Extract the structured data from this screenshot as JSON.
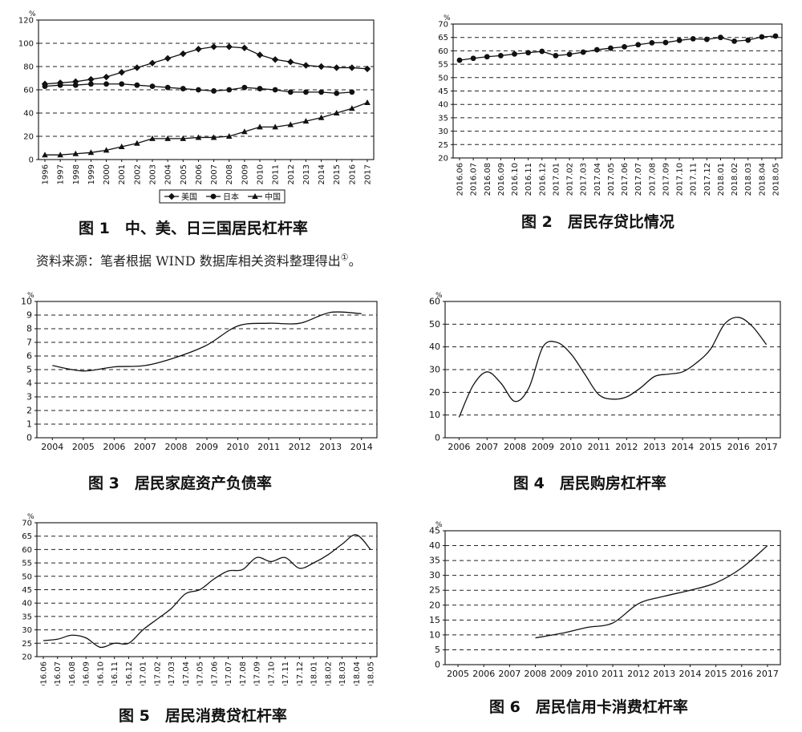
{
  "source_note": {
    "text": "资料来源：笔者根据 WIND 数据库相关资料整理得出",
    "mark": "①",
    "tail": "。"
  },
  "chart_data": [
    {
      "id": "fig1",
      "type": "line",
      "caption": "图 1　中、美、日三国居民杠杆率",
      "unit": "%",
      "ylim": [
        0,
        120
      ],
      "yticks": [
        0,
        20,
        40,
        60,
        80,
        100,
        120
      ],
      "x": [
        "1996",
        "1997",
        "1998",
        "1999",
        "2000",
        "2001",
        "2002",
        "2003",
        "2004",
        "2005",
        "2006",
        "2007",
        "2008",
        "2009",
        "2010",
        "2011",
        "2012",
        "2013",
        "2014",
        "2015",
        "2016",
        "2017"
      ],
      "x_label_rotate": true,
      "gridlines": [
        20,
        40,
        60,
        80,
        100
      ],
      "grid_dash": true,
      "markers": true,
      "legend": {
        "position": "bottom",
        "boxed": true
      },
      "series": [
        {
          "name": "美国",
          "marker": "diamond",
          "values": [
            65,
            66,
            67,
            69,
            71,
            75,
            79,
            83,
            87,
            91,
            95,
            97,
            97,
            96,
            90,
            86,
            84,
            81,
            80,
            79,
            79,
            78
          ]
        },
        {
          "name": "日本",
          "marker": "circle",
          "values": [
            63,
            64,
            64,
            65,
            65,
            65,
            64,
            63,
            62,
            61,
            60,
            59,
            60,
            62,
            61,
            60,
            58,
            58,
            58,
            57,
            58,
            null
          ]
        },
        {
          "name": "中国",
          "marker": "triangle",
          "values": [
            4,
            4,
            5,
            6,
            8,
            11,
            14,
            18,
            18,
            18,
            19,
            19,
            20,
            24,
            28,
            28,
            30,
            33,
            36,
            40,
            44,
            49
          ]
        }
      ]
    },
    {
      "id": "fig2",
      "type": "line",
      "caption": "图 2　居民存贷比情况",
      "unit": "%",
      "ylim": [
        20,
        70
      ],
      "yticks": [
        20,
        25,
        30,
        35,
        40,
        45,
        50,
        55,
        60,
        65,
        70
      ],
      "x": [
        "2016.06",
        "2016.07",
        "2016.08",
        "2016.09",
        "2016.10",
        "2016.11",
        "2016.12",
        "2017.01",
        "2017.02",
        "2017.03",
        "2017.04",
        "2017.05",
        "2017.06",
        "2017.07",
        "2017.08",
        "2017.09",
        "2017.10",
        "2017.11",
        "2017.12",
        "2018.01",
        "2018.02",
        "2018.03",
        "2018.04",
        "2018.05"
      ],
      "x_label_rotate": true,
      "gridlines": [
        25,
        30,
        35,
        40,
        45,
        50,
        55,
        60,
        65
      ],
      "grid_dash": true,
      "markers": true,
      "series": [
        {
          "marker": "circle",
          "values": [
            56.5,
            57.2,
            57.8,
            58.2,
            58.8,
            59.3,
            59.8,
            58.2,
            58.7,
            59.5,
            60.4,
            61.0,
            61.5,
            62.3,
            63.0,
            63.1,
            63.9,
            64.5,
            64.3,
            65.0,
            63.6,
            64.0,
            65.2,
            65.5
          ]
        }
      ]
    },
    {
      "id": "fig3",
      "type": "line",
      "caption": "图 3　居民家庭资产负债率",
      "unit": "%",
      "ylim": [
        0,
        10
      ],
      "yticks": [
        0,
        1,
        2,
        3,
        4,
        5,
        6,
        7,
        8,
        9,
        10
      ],
      "x": [
        "2004",
        "2005",
        "2006",
        "2007",
        "2008",
        "2009",
        "2010",
        "2011",
        "2012",
        "2013",
        "2014"
      ],
      "x_label_rotate": false,
      "gridlines": [
        1,
        2,
        3,
        4,
        5,
        6,
        7,
        8,
        9
      ],
      "grid_dash": true,
      "markers": false,
      "series": [
        {
          "values": [
            5.3,
            4.9,
            5.2,
            5.3,
            5.9,
            6.8,
            8.2,
            8.4,
            8.4,
            9.2,
            9.1
          ]
        }
      ]
    },
    {
      "id": "fig4",
      "type": "line",
      "caption": "图 4　居民购房杠杆率",
      "unit": "%",
      "ylim": [
        0,
        60
      ],
      "yticks": [
        0,
        10,
        20,
        30,
        40,
        50,
        60
      ],
      "x": [
        "2006",
        "2007",
        "2008",
        "2009",
        "2010",
        "2011",
        "2012",
        "2013",
        "2014",
        "2015",
        "2016",
        "2017"
      ],
      "x_label_rotate": false,
      "gridlines": [
        10,
        20,
        30,
        40,
        50
      ],
      "grid_dash": true,
      "markers": false,
      "series": [
        {
          "x": [
            0,
            0.5,
            1,
            1.5,
            2,
            2.5,
            3,
            3.5,
            4,
            4.5,
            5,
            5.5,
            6,
            6.5,
            7,
            7.5,
            8,
            8.5,
            9,
            9.5,
            10,
            10.5,
            11
          ],
          "values": [
            9,
            23,
            29,
            24,
            16,
            22,
            40,
            42,
            37,
            28,
            19,
            17,
            18,
            22,
            27,
            28,
            29,
            33,
            39,
            50,
            53,
            49,
            41
          ]
        }
      ]
    },
    {
      "id": "fig5",
      "type": "line",
      "caption": "图 5　居民消费贷杠杆率",
      "unit": "%",
      "ylim": [
        20,
        70
      ],
      "yticks": [
        20,
        25,
        30,
        35,
        40,
        45,
        50,
        55,
        60,
        65,
        70
      ],
      "x": [
        "2016.06",
        "2016.07",
        "2016.08",
        "2016.09",
        "2016.10",
        "2016.11",
        "2016.12",
        "2017.01",
        "2017.02",
        "2017.03",
        "2017.04",
        "2017.05",
        "2017.06",
        "2017.07",
        "2017.08",
        "2017.09",
        "2017.10",
        "2017.11",
        "2017.12",
        "2018.01",
        "2018.02",
        "2018.03",
        "2018.04",
        "2018.05"
      ],
      "x_label_rotate": true,
      "gridlines": [
        25,
        30,
        35,
        40,
        45,
        50,
        55,
        60,
        65
      ],
      "grid_dash": true,
      "markers": false,
      "series": [
        {
          "values": [
            26,
            26.5,
            28,
            27,
            23.5,
            25,
            25,
            30,
            34,
            38,
            43.5,
            45,
            49,
            52,
            52.5,
            57,
            55.5,
            57,
            53,
            55,
            58,
            62,
            65.5,
            60
          ]
        }
      ]
    },
    {
      "id": "fig6",
      "type": "line",
      "caption": "图 6　居民信用卡消费杠杆率",
      "unit": "%",
      "ylim": [
        0,
        45
      ],
      "yticks": [
        0,
        5,
        10,
        15,
        20,
        25,
        30,
        35,
        40,
        45
      ],
      "x": [
        "2005",
        "2006",
        "2007",
        "2008",
        "2009",
        "2010",
        "2011",
        "2012",
        "2013",
        "2014",
        "2015",
        "2016",
        "2017"
      ],
      "x_label_rotate": false,
      "gridlines": [
        5,
        10,
        15,
        20,
        25,
        30,
        35,
        40
      ],
      "grid_dash": true,
      "markers": false,
      "series": [
        {
          "x": [
            3,
            4,
            5,
            6,
            7,
            8,
            9,
            10,
            11,
            12
          ],
          "values": [
            9,
            10.5,
            12.5,
            14,
            20.5,
            23,
            25,
            27.5,
            32.5,
            40
          ]
        }
      ]
    }
  ]
}
